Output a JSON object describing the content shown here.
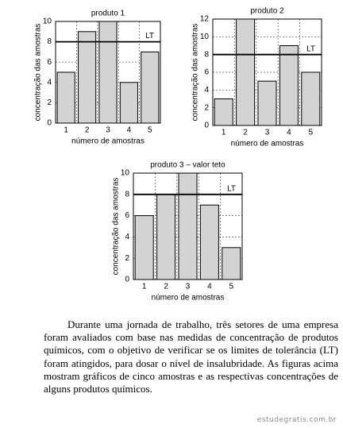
{
  "chart_data": [
    {
      "type": "bar",
      "title": "produto 1",
      "categories": [
        "1",
        "2",
        "3",
        "4",
        "5"
      ],
      "values": [
        5,
        9,
        10,
        4,
        7
      ],
      "color": "#d3d3d3",
      "xlabel": "número de amostras",
      "ylabel": "concentração das amostras",
      "ylim": [
        0,
        10
      ],
      "yticks": [
        0,
        2,
        4,
        6,
        8,
        10
      ],
      "grid": true,
      "reference_line": {
        "value": 8,
        "label": "LT"
      }
    },
    {
      "type": "bar",
      "title": "produto 2",
      "categories": [
        "1",
        "2",
        "3",
        "4",
        "5"
      ],
      "values": [
        3,
        12,
        5,
        9,
        6
      ],
      "color": "#d3d3d3",
      "xlabel": "número de amostras",
      "ylabel": "concentração das amostras",
      "ylim": [
        0,
        12
      ],
      "yticks": [
        0,
        2,
        4,
        6,
        8,
        10,
        12
      ],
      "grid": true,
      "reference_line": {
        "value": 8,
        "label": "LT"
      }
    },
    {
      "type": "bar",
      "title": "produto 3 – valor teto",
      "categories": [
        "1",
        "2",
        "3",
        "4",
        "5"
      ],
      "values": [
        6,
        8,
        10,
        7,
        3
      ],
      "color": "#d3d3d3",
      "xlabel": "número de amostras",
      "ylabel": "concentração das amostras",
      "ylim": [
        0,
        10
      ],
      "yticks": [
        0,
        2,
        4,
        6,
        8,
        10
      ],
      "grid": true,
      "reference_line": {
        "value": 8,
        "label": "LT"
      }
    }
  ],
  "paragraph": "Durante uma jornada de trabalho, três setores de uma empresa foram avaliados com base nas medidas de concentração de produtos químicos, com o objetivo de verificar se os limites de tolerância (LT) foram atingidos, para dosar o nível de insalubridade. As figuras acima mostram gráficos de cinco amostras e as respectivas concentrações de alguns produtos químicos.",
  "watermark": "estudegratis.com.br"
}
